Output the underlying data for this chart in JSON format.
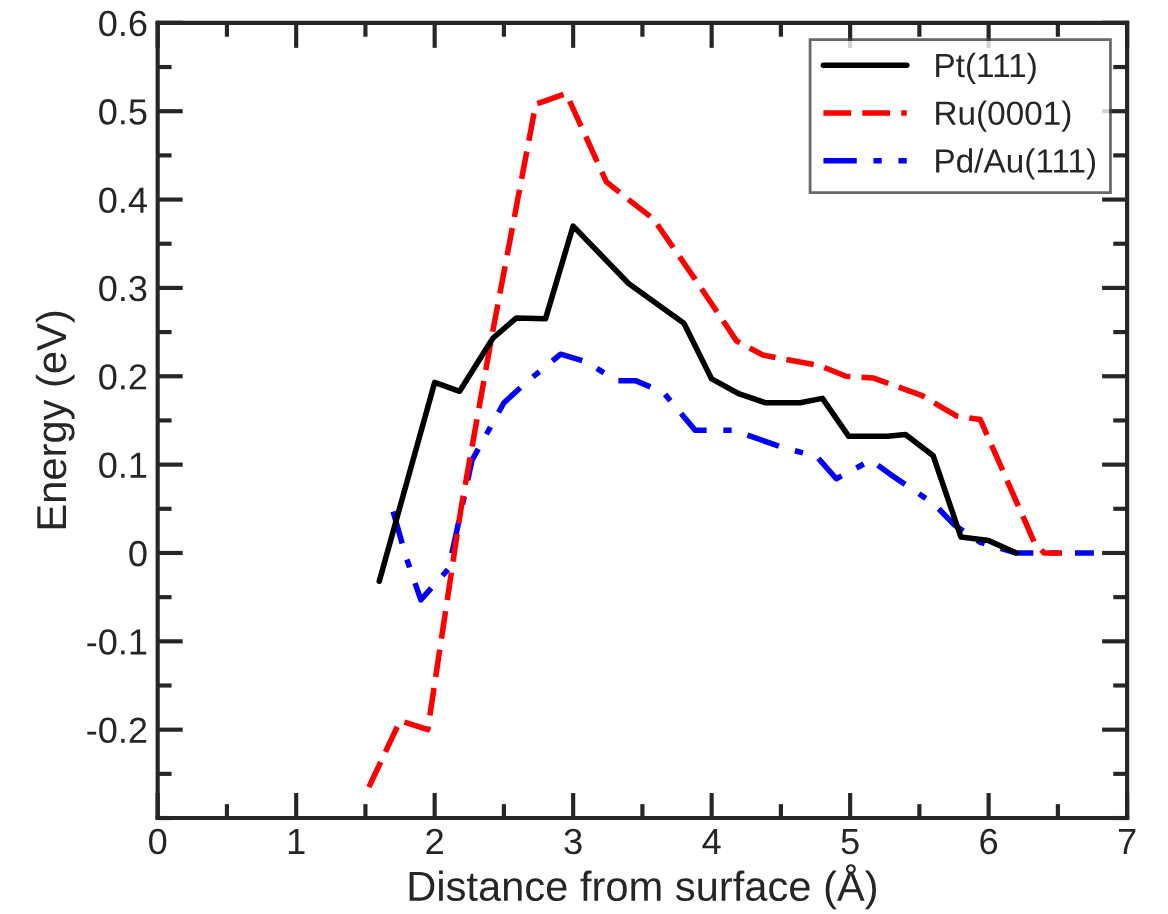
{
  "chart_data": {
    "type": "line",
    "xlabel": "Distance from surface (Å)",
    "ylabel": "Energy (eV)",
    "xlim": [
      0,
      7
    ],
    "ylim": [
      -0.3,
      0.6
    ],
    "xticks": [
      0,
      1,
      2,
      3,
      4,
      5,
      6,
      7
    ],
    "yticks": [
      -0.2,
      -0.1,
      0,
      0.1,
      0.2,
      0.3,
      0.4,
      0.5,
      0.6
    ],
    "grid": false,
    "legend": "top right",
    "marker": "none",
    "series": [
      {
        "name": "Pt(111)",
        "color": "#000000",
        "line_style": "solid",
        "x": [
          1.6,
          2.0,
          2.18,
          2.42,
          2.59,
          2.8,
          3.0,
          3.4,
          3.8,
          4.0,
          4.2,
          4.39,
          4.64,
          4.8,
          4.99,
          5.27,
          5.4,
          5.6,
          5.8,
          6.0,
          6.2
        ],
        "values": [
          -0.032,
          0.193,
          0.183,
          0.243,
          0.266,
          0.265,
          0.37,
          0.305,
          0.26,
          0.197,
          0.18,
          0.17,
          0.17,
          0.175,
          0.132,
          0.132,
          0.134,
          0.11,
          0.018,
          0.014,
          0.0
        ]
      },
      {
        "name": "Ru(0001)",
        "color": "#ff0000",
        "line_style": "dashed",
        "x": [
          1.525,
          1.75,
          1.95,
          2.19,
          2.41,
          2.73,
          2.95,
          3.24,
          3.4,
          3.58,
          3.88,
          4.18,
          4.37,
          4.78,
          4.97,
          5.17,
          5.52,
          5.77,
          5.94,
          6.33,
          6.4,
          6.53
        ],
        "values": [
          -0.265,
          -0.19,
          -0.2,
          0.05,
          0.243,
          0.508,
          0.52,
          0.42,
          0.4,
          0.378,
          0.31,
          0.24,
          0.224,
          0.212,
          0.2,
          0.198,
          0.178,
          0.155,
          0.151,
          0.012,
          0.0,
          0.0
        ]
      },
      {
        "name": "Pd/Au(111)",
        "color": "#0000ff",
        "line_style": "dashdot",
        "x": [
          1.7,
          1.79,
          1.9,
          2.1,
          2.27,
          2.5,
          2.66,
          2.91,
          3.1,
          3.31,
          3.45,
          3.65,
          3.88,
          4.16,
          4.5,
          4.76,
          4.9,
          5.15,
          5.29,
          5.61,
          5.75,
          5.94,
          6.2,
          6.76
        ],
        "values": [
          0.047,
          -0.003,
          -0.053,
          -0.018,
          0.105,
          0.17,
          0.193,
          0.225,
          0.216,
          0.195,
          0.195,
          0.182,
          0.139,
          0.139,
          0.12,
          0.109,
          0.084,
          0.105,
          0.089,
          0.055,
          0.032,
          0.012,
          0.0,
          0.0
        ]
      }
    ]
  }
}
